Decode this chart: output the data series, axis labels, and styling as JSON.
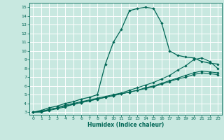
{
  "xlabel": "Humidex (Indice chaleur)",
  "bg_color": "#c8e8e0",
  "grid_color": "#ffffff",
  "line_color": "#006655",
  "xlim": [
    -0.5,
    23.5
  ],
  "ylim": [
    2.7,
    15.5
  ],
  "xticks": [
    0,
    1,
    2,
    3,
    4,
    5,
    6,
    7,
    8,
    9,
    10,
    11,
    12,
    13,
    14,
    15,
    16,
    17,
    18,
    19,
    20,
    21,
    22,
    23
  ],
  "yticks": [
    3,
    4,
    5,
    6,
    7,
    8,
    9,
    10,
    11,
    12,
    13,
    14,
    15
  ],
  "curve1_x": [
    0,
    1,
    2,
    3,
    4,
    5,
    6,
    7,
    8,
    9,
    10,
    11,
    12,
    13,
    14,
    15,
    16,
    17,
    18,
    19,
    20,
    21,
    22,
    23
  ],
  "curve1_y": [
    3.0,
    3.2,
    3.5,
    3.7,
    4.0,
    4.2,
    4.5,
    4.7,
    5.0,
    8.5,
    11.0,
    12.5,
    14.6,
    14.85,
    15.0,
    14.85,
    13.2,
    10.0,
    9.5,
    9.3,
    9.2,
    8.8,
    8.6,
    8.5
  ],
  "curve2_x": [
    0,
    1,
    2,
    3,
    4,
    5,
    6,
    7,
    8,
    9,
    10,
    11,
    12,
    13,
    14,
    15,
    16,
    17,
    18,
    19,
    20,
    21,
    22,
    23
  ],
  "curve2_y": [
    3.0,
    3.1,
    3.3,
    3.5,
    3.8,
    4.0,
    4.2,
    4.4,
    4.6,
    4.8,
    5.0,
    5.2,
    5.5,
    5.8,
    6.1,
    6.4,
    6.8,
    7.2,
    7.8,
    8.3,
    9.0,
    9.2,
    8.8,
    8.0
  ],
  "curve3_x": [
    0,
    1,
    2,
    3,
    4,
    5,
    6,
    7,
    8,
    9,
    10,
    11,
    12,
    13,
    14,
    15,
    16,
    17,
    18,
    19,
    20,
    21,
    22,
    23
  ],
  "curve3_y": [
    3.0,
    3.0,
    3.2,
    3.4,
    3.6,
    3.9,
    4.1,
    4.3,
    4.5,
    4.7,
    4.9,
    5.1,
    5.3,
    5.5,
    5.8,
    6.0,
    6.3,
    6.6,
    6.9,
    7.2,
    7.5,
    7.7,
    7.6,
    7.5
  ],
  "curve4_x": [
    0,
    1,
    2,
    3,
    4,
    5,
    6,
    7,
    8,
    9,
    10,
    11,
    12,
    13,
    14,
    15,
    16,
    17,
    18,
    19,
    20,
    21,
    22,
    23
  ],
  "curve4_y": [
    3.0,
    3.1,
    3.3,
    3.5,
    3.7,
    3.9,
    4.1,
    4.3,
    4.5,
    4.7,
    4.9,
    5.1,
    5.3,
    5.5,
    5.7,
    5.9,
    6.2,
    6.5,
    6.8,
    7.0,
    7.3,
    7.5,
    7.4,
    7.3
  ]
}
